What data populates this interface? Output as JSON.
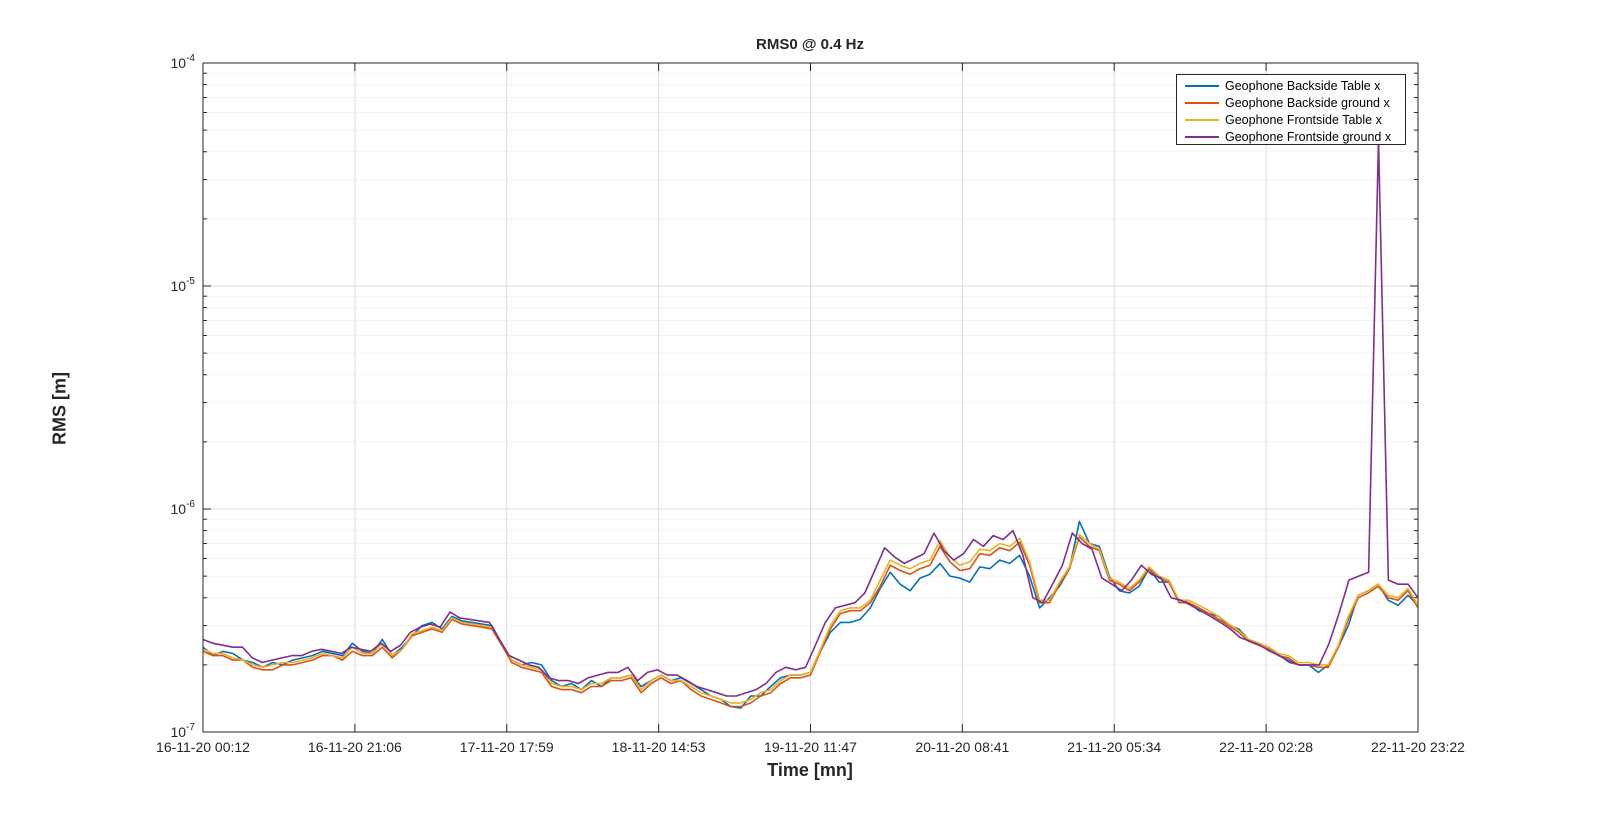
{
  "chart_data": {
    "type": "line",
    "title": "RMS0 @ 0.4 Hz",
    "xlabel": "Time [mn]",
    "ylabel": "RMS [m]",
    "yscale": "log",
    "ylim": [
      1e-07,
      0.0001
    ],
    "grid": true,
    "legend_position": "top-right",
    "y_ticks": [
      {
        "value": 1e-07,
        "base": "10",
        "exp": "-7"
      },
      {
        "value": 1e-06,
        "base": "10",
        "exp": "-6"
      },
      {
        "value": 1e-05,
        "base": "10",
        "exp": "-5"
      },
      {
        "value": 0.0001,
        "base": "10",
        "exp": "-4"
      }
    ],
    "x_ticks": [
      "16-11-20 00:12",
      "16-11-20 21:06",
      "17-11-20 17:59",
      "18-11-20 14:53",
      "19-11-20 11:47",
      "20-11-20 08:41",
      "21-11-20 05:34",
      "22-11-20 02:28",
      "22-11-20 23:22"
    ],
    "series": [
      {
        "name": "Geophone Backside Table x",
        "color": "#0072BD",
        "values_e7": [
          2.4,
          2.2,
          2.3,
          2.25,
          2.1,
          2.05,
          1.95,
          2.05,
          2.0,
          2.1,
          2.15,
          2.2,
          2.3,
          2.25,
          2.2,
          2.5,
          2.3,
          2.25,
          2.6,
          2.2,
          2.4,
          2.7,
          3.0,
          3.1,
          2.9,
          3.3,
          3.15,
          3.1,
          3.05,
          3.0,
          2.5,
          2.1,
          2.0,
          2.05,
          2.0,
          1.7,
          1.6,
          1.65,
          1.55,
          1.7,
          1.6,
          1.75,
          1.75,
          1.8,
          1.6,
          1.7,
          1.8,
          1.7,
          1.75,
          1.65,
          1.55,
          1.45,
          1.4,
          1.3,
          1.28,
          1.45,
          1.45,
          1.6,
          1.75,
          1.8,
          1.8,
          1.85,
          2.3,
          2.8,
          3.1,
          3.1,
          3.2,
          3.6,
          4.4,
          5.2,
          4.6,
          4.3,
          4.9,
          5.1,
          5.7,
          5.0,
          4.9,
          4.7,
          5.5,
          5.4,
          5.9,
          5.7,
          6.2,
          5.0,
          3.6,
          4.0,
          4.5,
          5.4,
          8.8,
          7.0,
          6.8,
          5.0,
          4.3,
          4.2,
          4.5,
          5.4,
          4.7,
          4.7,
          3.9,
          3.8,
          3.5,
          3.4,
          3.3,
          3.0,
          2.9,
          2.6,
          2.5,
          2.4,
          2.2,
          2.1,
          2.0,
          2.0,
          1.85,
          2.0,
          2.4,
          3.0,
          4.1,
          4.3,
          4.6,
          3.9,
          3.7,
          4.1,
          3.7
        ]
      },
      {
        "name": "Geophone Backside ground x",
        "color": "#D95319",
        "values_e7": [
          2.3,
          2.2,
          2.2,
          2.1,
          2.1,
          1.95,
          1.9,
          1.9,
          2.0,
          2.0,
          2.05,
          2.1,
          2.2,
          2.2,
          2.1,
          2.3,
          2.2,
          2.2,
          2.4,
          2.15,
          2.35,
          2.7,
          2.8,
          2.9,
          2.8,
          3.2,
          3.05,
          3.0,
          2.95,
          2.9,
          2.45,
          2.05,
          1.95,
          1.9,
          1.85,
          1.6,
          1.55,
          1.55,
          1.5,
          1.6,
          1.6,
          1.7,
          1.7,
          1.75,
          1.5,
          1.65,
          1.75,
          1.65,
          1.7,
          1.55,
          1.45,
          1.4,
          1.35,
          1.3,
          1.3,
          1.35,
          1.45,
          1.5,
          1.65,
          1.75,
          1.75,
          1.8,
          2.3,
          2.9,
          3.4,
          3.5,
          3.5,
          3.8,
          4.5,
          5.6,
          5.3,
          5.1,
          5.4,
          5.6,
          6.8,
          5.8,
          5.3,
          5.4,
          6.3,
          6.2,
          6.7,
          6.5,
          7.1,
          5.6,
          3.8,
          3.8,
          4.6,
          5.4,
          7.5,
          6.8,
          6.5,
          4.8,
          4.6,
          4.3,
          4.7,
          5.4,
          4.9,
          4.7,
          3.8,
          3.8,
          3.6,
          3.4,
          3.2,
          3.0,
          2.8,
          2.55,
          2.45,
          2.35,
          2.2,
          2.15,
          2.0,
          2.0,
          1.95,
          1.95,
          2.4,
          3.2,
          4.0,
          4.2,
          4.5,
          4.0,
          3.9,
          4.3,
          3.6
        ]
      },
      {
        "name": "Geophone Frontside Table x",
        "color": "#EDB120",
        "values_e7": [
          2.35,
          2.25,
          2.25,
          2.15,
          2.1,
          2.0,
          1.95,
          2.0,
          2.05,
          2.05,
          2.1,
          2.15,
          2.25,
          2.2,
          2.15,
          2.4,
          2.25,
          2.25,
          2.5,
          2.2,
          2.35,
          2.75,
          2.85,
          2.95,
          2.85,
          3.25,
          3.1,
          3.05,
          3.0,
          2.95,
          2.5,
          2.1,
          2.0,
          1.95,
          1.9,
          1.65,
          1.6,
          1.6,
          1.55,
          1.65,
          1.65,
          1.75,
          1.75,
          1.8,
          1.55,
          1.7,
          1.8,
          1.7,
          1.7,
          1.6,
          1.5,
          1.45,
          1.4,
          1.35,
          1.35,
          1.4,
          1.5,
          1.55,
          1.7,
          1.8,
          1.8,
          1.85,
          2.35,
          3.0,
          3.5,
          3.6,
          3.6,
          3.9,
          4.8,
          5.9,
          5.6,
          5.4,
          5.7,
          5.9,
          7.2,
          6.1,
          5.6,
          5.8,
          6.6,
          6.5,
          7.0,
          6.8,
          7.4,
          5.8,
          3.9,
          3.9,
          4.7,
          5.5,
          7.7,
          7.0,
          6.6,
          4.9,
          4.7,
          4.4,
          4.8,
          5.5,
          5.0,
          4.8,
          3.9,
          3.9,
          3.7,
          3.5,
          3.3,
          3.05,
          2.85,
          2.6,
          2.5,
          2.4,
          2.25,
          2.2,
          2.05,
          2.05,
          2.0,
          2.0,
          2.45,
          3.3,
          4.1,
          4.3,
          4.6,
          4.1,
          4.0,
          4.4,
          3.7
        ]
      },
      {
        "name": "Geophone Frontside ground x",
        "color": "#7E2F8E",
        "values_e7": [
          2.6,
          2.5,
          2.45,
          2.4,
          2.4,
          2.15,
          2.05,
          2.1,
          2.15,
          2.2,
          2.2,
          2.3,
          2.35,
          2.3,
          2.25,
          2.4,
          2.35,
          2.3,
          2.5,
          2.3,
          2.45,
          2.8,
          2.95,
          3.05,
          2.95,
          3.45,
          3.25,
          3.2,
          3.15,
          3.1,
          2.6,
          2.2,
          2.1,
          2.0,
          1.95,
          1.75,
          1.7,
          1.7,
          1.65,
          1.75,
          1.8,
          1.85,
          1.85,
          1.95,
          1.7,
          1.85,
          1.9,
          1.8,
          1.8,
          1.7,
          1.6,
          1.55,
          1.5,
          1.45,
          1.45,
          1.5,
          1.55,
          1.65,
          1.85,
          1.95,
          1.9,
          1.95,
          2.45,
          3.1,
          3.6,
          3.7,
          3.8,
          4.2,
          5.3,
          6.7,
          6.1,
          5.7,
          6.0,
          6.3,
          7.8,
          6.5,
          5.9,
          6.3,
          7.3,
          6.8,
          7.6,
          7.3,
          8.0,
          6.2,
          4.0,
          3.8,
          4.6,
          5.6,
          7.8,
          7.0,
          6.6,
          4.9,
          4.6,
          4.3,
          4.8,
          5.6,
          5.1,
          4.9,
          4.0,
          3.9,
          3.7,
          3.5,
          3.3,
          3.1,
          2.9,
          2.65,
          2.55,
          2.45,
          2.3,
          2.2,
          2.05,
          2.0,
          2.0,
          2.0,
          2.5,
          3.4,
          4.8,
          5.0,
          5.2,
          450,
          4.8,
          4.6,
          4.6,
          4.0
        ]
      }
    ]
  }
}
